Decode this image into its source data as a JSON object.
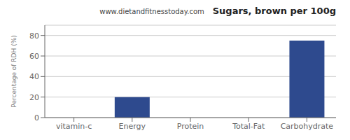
{
  "chart_data": {
    "type": "bar",
    "title": "Sugars, brown per 100g",
    "subtitle": "www.dietandfitnesstoday.com",
    "categories": [
      "vitamin-c",
      "Energy",
      "Protein",
      "Total-Fat",
      "Carbohydrate"
    ],
    "values": [
      0,
      20,
      0,
      0,
      75
    ],
    "color": "#2e4a8e",
    "ylabel": "Percentage of RDH (%)",
    "ylim": [
      0,
      90
    ],
    "yticks": [
      0,
      20,
      40,
      60,
      80
    ],
    "grid": true
  }
}
